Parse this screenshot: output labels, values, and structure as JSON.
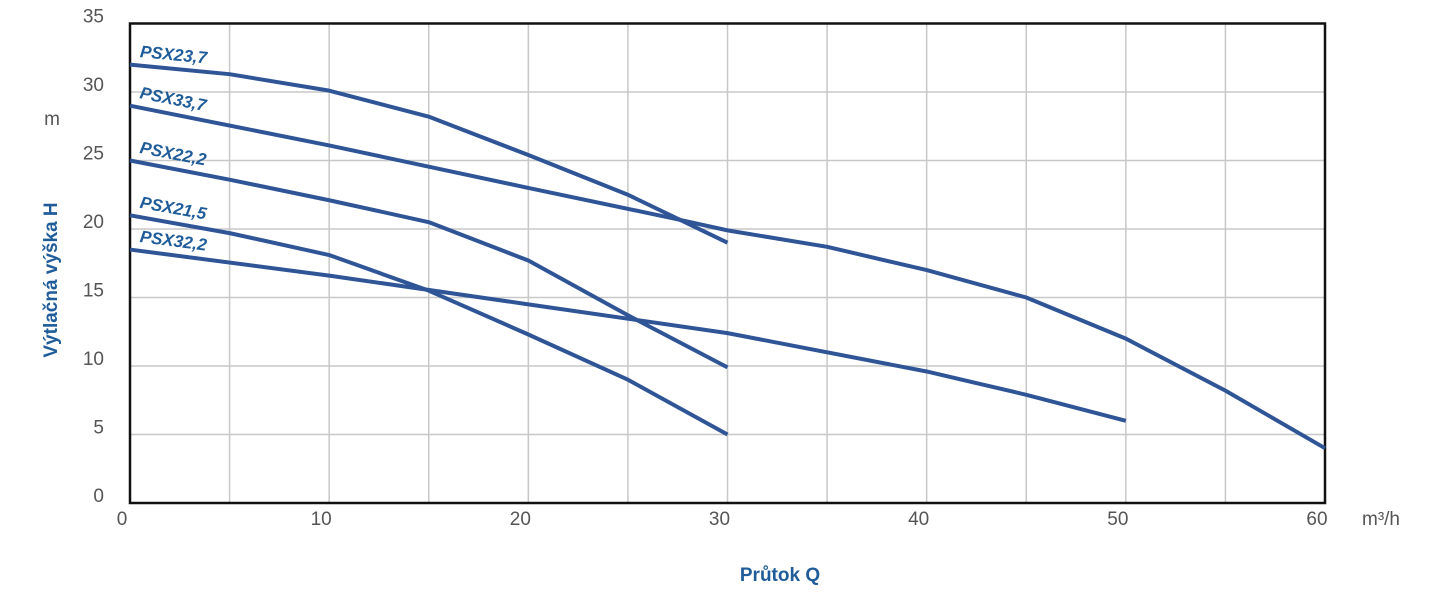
{
  "chart_data": {
    "type": "line",
    "y_label_unit": "m",
    "y_label": "Výtlačná výška H",
    "x_label_unit": "m³/h",
    "x_label": "Průtok Q",
    "xlim": [
      0,
      60
    ],
    "xticks": [
      0,
      10,
      20,
      30,
      40,
      50,
      60
    ],
    "ylim": [
      0,
      35
    ],
    "yticks": [
      0,
      5,
      10,
      15,
      20,
      25,
      30,
      35
    ],
    "grid": true,
    "series": [
      {
        "name": "PSX23,7",
        "color": "#2f5597",
        "x": [
          0,
          5,
          10,
          15,
          20,
          25,
          30
        ],
        "values": [
          32.0,
          31.3,
          30.1,
          28.2,
          25.4,
          22.5,
          19.0
        ]
      },
      {
        "name": "PSX33,7",
        "color": "#2f5597",
        "x": [
          0,
          10,
          20,
          27.2,
          30,
          35,
          40,
          45,
          50,
          55,
          60
        ],
        "values": [
          29.0,
          26.1,
          23.0,
          20.8,
          19.9,
          18.7,
          17.0,
          15.0,
          12.0,
          8.2,
          4.0
        ]
      },
      {
        "name": "PSX22,2",
        "color": "#2f5597",
        "x": [
          0,
          5,
          10,
          15,
          20,
          25,
          30
        ],
        "values": [
          25.0,
          23.6,
          22.1,
          20.5,
          17.7,
          13.7,
          9.9
        ]
      },
      {
        "name": "PSX21,5",
        "color": "#2f5597",
        "x": [
          0,
          5,
          10,
          15,
          20,
          25,
          30
        ],
        "values": [
          21.0,
          19.7,
          18.1,
          15.5,
          12.3,
          9.0,
          5.0
        ]
      },
      {
        "name": "PSX32,2",
        "color": "#2f5597",
        "x": [
          0,
          10,
          20,
          30,
          40,
          45,
          50
        ],
        "values": [
          18.5,
          16.6,
          14.5,
          12.4,
          9.6,
          7.9,
          6.0
        ]
      }
    ]
  }
}
